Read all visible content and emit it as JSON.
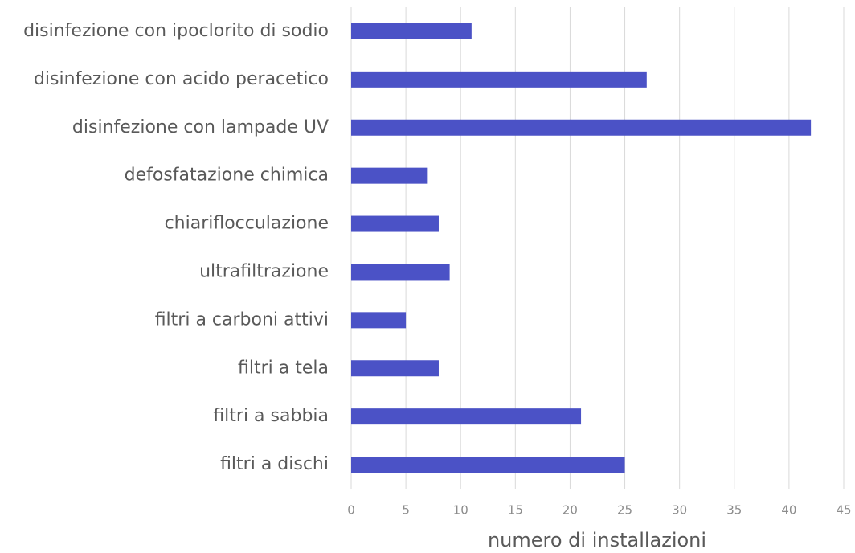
{
  "chart_data": {
    "type": "bar",
    "orientation": "horizontal",
    "x_label": "numero di installazioni",
    "categories": [
      "disinfezione con ipoclorito di sodio",
      "disinfezione con acido peracetico",
      "disinfezione con lampade UV",
      "defosfatazione chimica",
      "chiariflocculazione",
      "ultrafiltrazione",
      "filtri a carboni attivi",
      "filtri a tela",
      "filtri a sabbia",
      "filtri a dischi"
    ],
    "values": [
      11,
      27,
      42,
      7,
      8,
      9,
      5,
      8,
      21,
      25
    ],
    "color": "#4b52c6",
    "xlim": [
      0,
      45
    ],
    "xticks": [
      0,
      5,
      10,
      15,
      20,
      25,
      30,
      35,
      40,
      45
    ],
    "grid": true
  }
}
